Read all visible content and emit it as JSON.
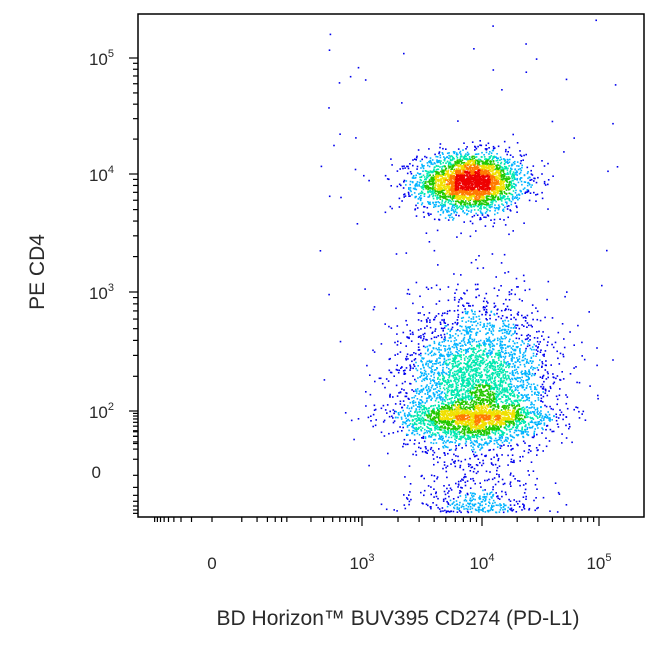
{
  "chart_data": {
    "type": "scatter",
    "title": "",
    "xlabel": "BD Horizon™ BUV395 CD274 (PD-L1)",
    "ylabel": "PE CD4",
    "x_scale": "biexponential",
    "y_scale": "biexponential",
    "xlim": [
      -150,
      200000
    ],
    "ylim": [
      -60,
      200000
    ],
    "grid": false,
    "legend": "none",
    "colormap": [
      "#0000ee",
      "#00b4ff",
      "#00e8b0",
      "#22c800",
      "#f0e000",
      "#ff7a00",
      "#ee0000"
    ],
    "x_ticks": [
      {
        "value": 0,
        "base": "0",
        "exp": ""
      },
      {
        "value": 1000,
        "base": "10",
        "exp": "3"
      },
      {
        "value": 10000,
        "base": "10",
        "exp": "4"
      },
      {
        "value": 100000,
        "base": "10",
        "exp": "5"
      }
    ],
    "y_ticks": [
      {
        "value": 0,
        "base": "0",
        "exp": ""
      },
      {
        "value": 100,
        "base": "10",
        "exp": "2"
      },
      {
        "value": 1000,
        "base": "10",
        "exp": "3"
      },
      {
        "value": 10000,
        "base": "10",
        "exp": "4"
      },
      {
        "value": 100000,
        "base": "10",
        "exp": "5"
      }
    ],
    "populations": [
      {
        "name": "",
        "center_x": 8000,
        "center_y": 8500,
        "spread_x_decades": 0.22,
        "spread_y_decades": 0.12,
        "relative_density": "high",
        "events": 3200
      },
      {
        "name": "",
        "center_x": 9000,
        "center_y": 150,
        "spread_x_decades": 0.3,
        "spread_y_decades": 0.35,
        "relative_density": "medium",
        "events": 5200
      }
    ]
  }
}
